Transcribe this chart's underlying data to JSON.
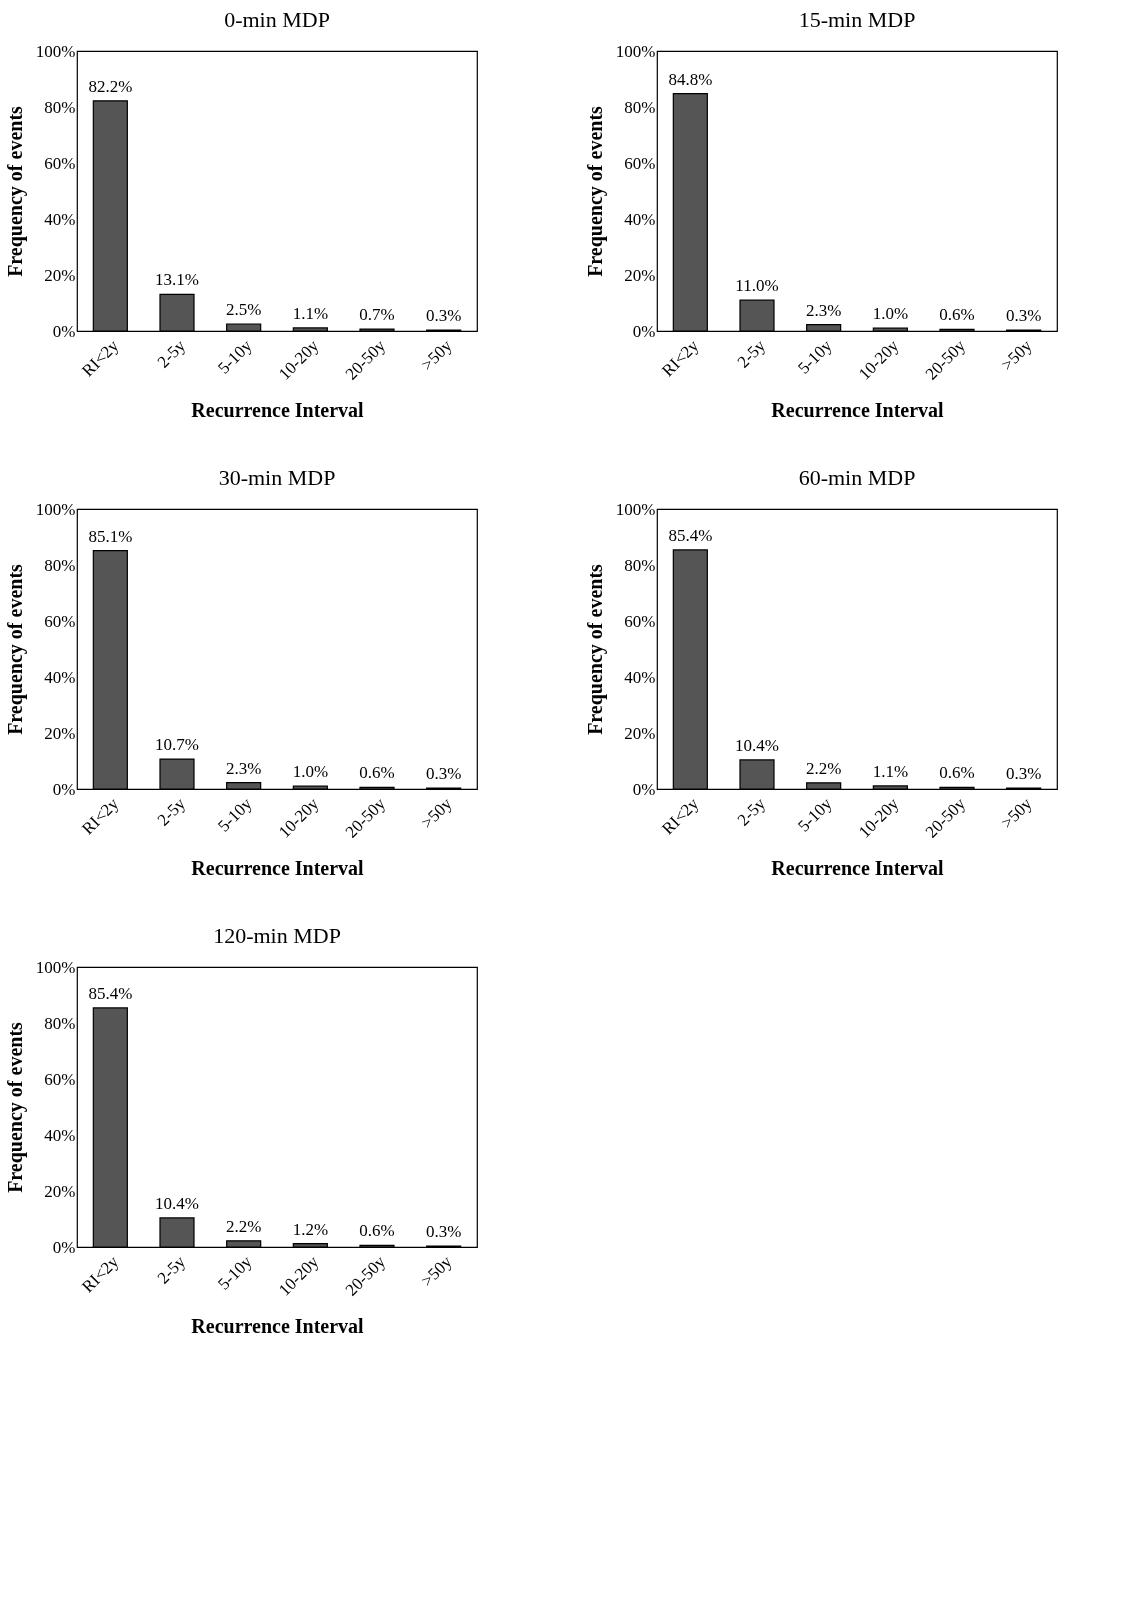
{
  "chart_data": [
    {
      "type": "bar",
      "title": "0-min MDP",
      "xlabel": "Recurrence Interval",
      "ylabel": "Frequency of events",
      "categories": [
        "RI<2y",
        "2-5y",
        "5-10y",
        "10-20y",
        "20-50y",
        ">50y"
      ],
      "values": [
        82.2,
        13.1,
        2.5,
        1.1,
        0.7,
        0.3
      ],
      "value_labels": [
        "82.2%",
        "13.1%",
        "2.5%",
        "1.1%",
        "0.7%",
        "0.3%"
      ],
      "color": "#555555",
      "ylim": [
        0,
        100
      ],
      "yticks": [
        {
          "value": 0,
          "label": "0%"
        },
        {
          "value": 20,
          "label": "20%"
        },
        {
          "value": 40,
          "label": "40%"
        },
        {
          "value": 60,
          "label": "60%"
        },
        {
          "value": 80,
          "label": "80%"
        },
        {
          "value": 100,
          "label": "100%"
        }
      ],
      "grid": false
    },
    {
      "type": "bar",
      "title": "15-min MDP",
      "xlabel": "Recurrence Interval",
      "ylabel": "Frequency of events",
      "categories": [
        "RI<2y",
        "2-5y",
        "5-10y",
        "10-20y",
        "20-50y",
        ">50y"
      ],
      "values": [
        84.8,
        11.0,
        2.3,
        1.0,
        0.6,
        0.3
      ],
      "value_labels": [
        "84.8%",
        "11.0%",
        "2.3%",
        "1.0%",
        "0.6%",
        "0.3%"
      ],
      "color": "#555555",
      "ylim": [
        0,
        100
      ],
      "yticks": [
        {
          "value": 0,
          "label": "0%"
        },
        {
          "value": 20,
          "label": "20%"
        },
        {
          "value": 40,
          "label": "40%"
        },
        {
          "value": 60,
          "label": "60%"
        },
        {
          "value": 80,
          "label": "80%"
        },
        {
          "value": 100,
          "label": "100%"
        }
      ],
      "grid": false
    },
    {
      "type": "bar",
      "title": "30-min MDP",
      "xlabel": "Recurrence Interval",
      "ylabel": "Frequency of events",
      "categories": [
        "RI<2y",
        "2-5y",
        "5-10y",
        "10-20y",
        "20-50y",
        ">50y"
      ],
      "values": [
        85.1,
        10.7,
        2.3,
        1.0,
        0.6,
        0.3
      ],
      "value_labels": [
        "85.1%",
        "10.7%",
        "2.3%",
        "1.0%",
        "0.6%",
        "0.3%"
      ],
      "color": "#555555",
      "ylim": [
        0,
        100
      ],
      "yticks": [
        {
          "value": 0,
          "label": "0%"
        },
        {
          "value": 20,
          "label": "20%"
        },
        {
          "value": 40,
          "label": "40%"
        },
        {
          "value": 60,
          "label": "60%"
        },
        {
          "value": 80,
          "label": "80%"
        },
        {
          "value": 100,
          "label": "100%"
        }
      ],
      "grid": false
    },
    {
      "type": "bar",
      "title": "60-min MDP",
      "xlabel": "Recurrence Interval",
      "ylabel": "Frequency of events",
      "categories": [
        "RI<2y",
        "2-5y",
        "5-10y",
        "10-20y",
        "20-50y",
        ">50y"
      ],
      "values": [
        85.4,
        10.4,
        2.2,
        1.1,
        0.6,
        0.3
      ],
      "value_labels": [
        "85.4%",
        "10.4%",
        "2.2%",
        "1.1%",
        "0.6%",
        "0.3%"
      ],
      "color": "#555555",
      "ylim": [
        0,
        100
      ],
      "yticks": [
        {
          "value": 0,
          "label": "0%"
        },
        {
          "value": 20,
          "label": "20%"
        },
        {
          "value": 40,
          "label": "40%"
        },
        {
          "value": 60,
          "label": "60%"
        },
        {
          "value": 80,
          "label": "80%"
        },
        {
          "value": 100,
          "label": "100%"
        }
      ],
      "grid": false
    },
    {
      "type": "bar",
      "title": "120-min MDP",
      "xlabel": "Recurrence Interval",
      "ylabel": "Frequency of events",
      "categories": [
        "RI<2y",
        "2-5y",
        "5-10y",
        "10-20y",
        "20-50y",
        ">50y"
      ],
      "values": [
        85.4,
        10.4,
        2.2,
        1.2,
        0.6,
        0.3
      ],
      "value_labels": [
        "85.4%",
        "10.4%",
        "2.2%",
        "1.2%",
        "0.6%",
        "0.3%"
      ],
      "color": "#555555",
      "ylim": [
        0,
        100
      ],
      "yticks": [
        {
          "value": 0,
          "label": "0%"
        },
        {
          "value": 20,
          "label": "20%"
        },
        {
          "value": 40,
          "label": "40%"
        },
        {
          "value": 60,
          "label": "60%"
        },
        {
          "value": 80,
          "label": "80%"
        },
        {
          "value": 100,
          "label": "100%"
        }
      ],
      "grid": false
    }
  ]
}
